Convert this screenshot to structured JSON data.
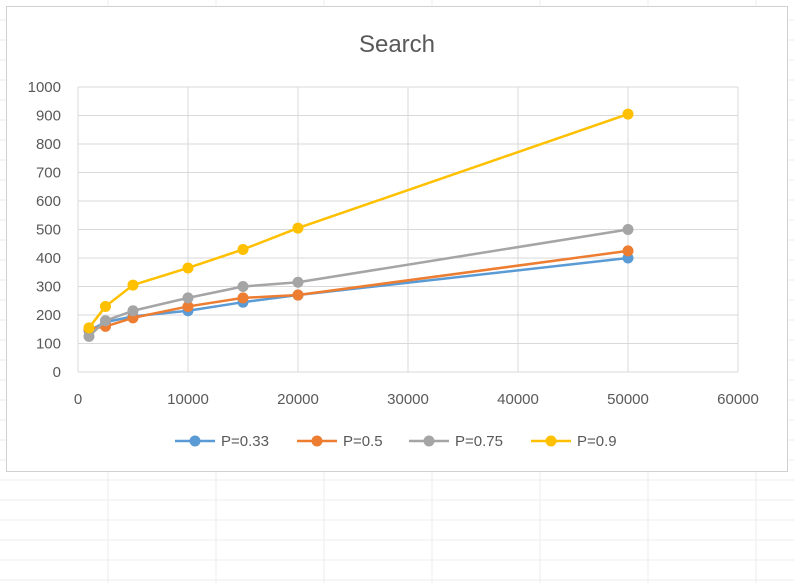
{
  "chart_data": {
    "type": "line",
    "title": "Search",
    "xlabel": "",
    "ylabel": "",
    "xlim": [
      0,
      60000
    ],
    "ylim": [
      0,
      1000
    ],
    "x_ticks": [
      0,
      10000,
      20000,
      30000,
      40000,
      50000,
      60000
    ],
    "y_ticks": [
      0,
      100,
      200,
      300,
      400,
      500,
      600,
      700,
      800,
      900,
      1000
    ],
    "x_tick_labels": [
      "0",
      "10000",
      "20000",
      "30000",
      "40000",
      "50000",
      "60000"
    ],
    "y_tick_labels": [
      "0",
      "100",
      "200",
      "300",
      "400",
      "500",
      "600",
      "700",
      "800",
      "900",
      "1000"
    ],
    "grid": true,
    "legend_position": "bottom",
    "x": [
      1000,
      2500,
      5000,
      10000,
      15000,
      20000,
      50000
    ],
    "series": [
      {
        "name": "P=0.33",
        "color": "#5b9bd5",
        "values": [
          145,
          175,
          195,
          215,
          245,
          270,
          400
        ]
      },
      {
        "name": "P=0.5",
        "color": "#ed7d31",
        "values": [
          150,
          160,
          190,
          230,
          260,
          270,
          425
        ]
      },
      {
        "name": "P=0.75",
        "color": "#a5a5a5",
        "values": [
          125,
          180,
          215,
          260,
          300,
          315,
          500
        ]
      },
      {
        "name": "P=0.9",
        "color": "#ffc000",
        "values": [
          155,
          230,
          305,
          365,
          430,
          505,
          905
        ]
      }
    ]
  }
}
